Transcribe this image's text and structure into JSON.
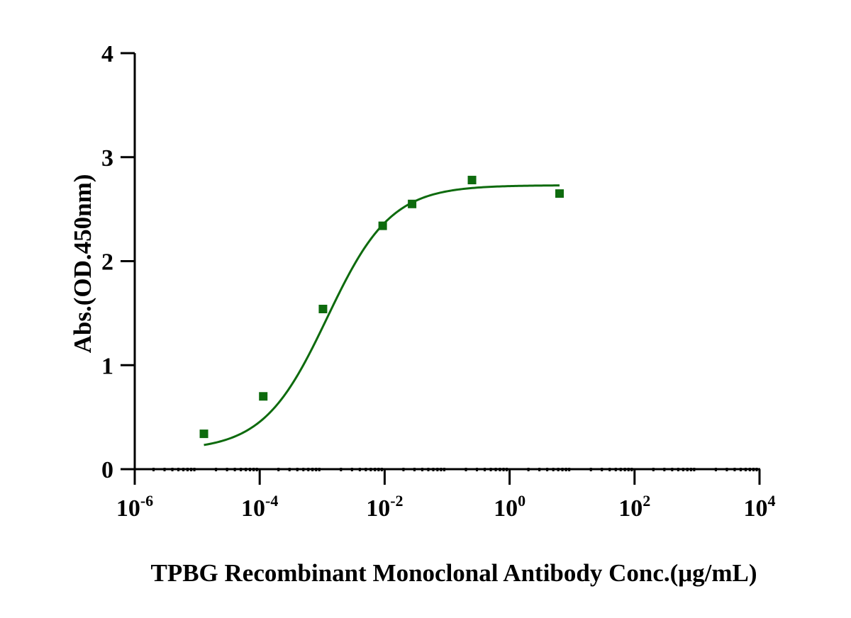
{
  "chart_data": {
    "type": "scatter",
    "title": "",
    "xlabel": "TPBG Recombinant Monoclonal Antibody  Conc.(μg/mL)",
    "ylabel": "Abs.(OD.450nm)",
    "x_scale": "log10",
    "xlim": [
      1e-06,
      10000
    ],
    "ylim": [
      0,
      4
    ],
    "x_ticks": [
      {
        "value": 1e-06,
        "base": "10",
        "exp": "-6"
      },
      {
        "value": 0.0001,
        "base": "10",
        "exp": "-4"
      },
      {
        "value": 0.01,
        "base": "10",
        "exp": "-2"
      },
      {
        "value": 1,
        "base": "10",
        "exp": "0"
      },
      {
        "value": 100,
        "base": "10",
        "exp": "2"
      },
      {
        "value": 10000,
        "base": "10",
        "exp": "4"
      }
    ],
    "y_ticks": [
      "0",
      "1",
      "2",
      "3",
      "4"
    ],
    "grid": false,
    "legend": "none",
    "series": [
      {
        "color": "#0e6b0e",
        "marker": "square",
        "fit": "four-parameter logistic",
        "points": [
          {
            "x": 1.28e-05,
            "y": 0.34
          },
          {
            "x": 0.000114,
            "y": 0.7
          },
          {
            "x": 0.00103,
            "y": 1.54
          },
          {
            "x": 0.0093,
            "y": 2.34
          },
          {
            "x": 0.0275,
            "y": 2.55
          },
          {
            "x": 0.25,
            "y": 2.78
          },
          {
            "x": 6.3,
            "y": 2.65
          }
        ],
        "curve": {
          "bottom": 0.18,
          "top": 2.73,
          "ec50": 0.0012,
          "hill": 0.85,
          "x_from": 1.28e-05,
          "x_to": 6.3
        }
      }
    ]
  }
}
